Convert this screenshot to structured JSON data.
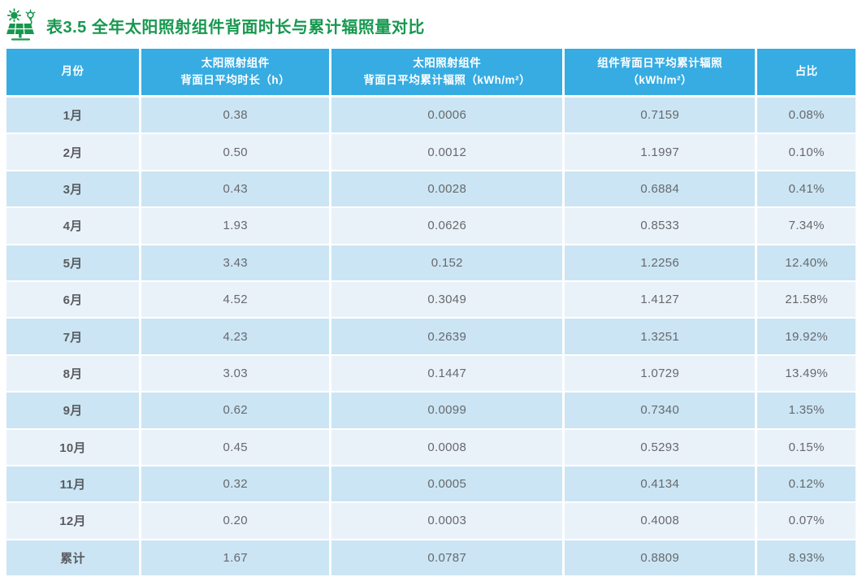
{
  "header": {
    "title": "表3.5 全年太阳照射组件背面时长与累计辐照量对比",
    "icon": "solar-panel-sun-bulb-icon"
  },
  "colors": {
    "title_green": "#17984F",
    "header_bg": "#36ACE2",
    "row_dark": "#CBE5F4",
    "row_light": "#EAF2F9",
    "header_text": "#FFFFFF",
    "cell_text": "#66696D"
  },
  "table": {
    "columns": [
      {
        "line1": "月份",
        "line2": ""
      },
      {
        "line1": "太阳照射组件",
        "line2": "背面日平均时长（h）"
      },
      {
        "line1": "太阳照射组件",
        "line2": "背面日平均累计辐照（kWh/m²）"
      },
      {
        "line1": "组件背面日平均累计辐照",
        "line2": "（kWh/m²）"
      },
      {
        "line1": "占比",
        "line2": ""
      }
    ],
    "rows": [
      [
        "1月",
        "0.38",
        "0.0006",
        "0.7159",
        "0.08%"
      ],
      [
        "2月",
        "0.50",
        "0.0012",
        "1.1997",
        "0.10%"
      ],
      [
        "3月",
        "0.43",
        "0.0028",
        "0.6884",
        "0.41%"
      ],
      [
        "4月",
        "1.93",
        "0.0626",
        "0.8533",
        "7.34%"
      ],
      [
        "5月",
        "3.43",
        "0.152",
        "1.2256",
        "12.40%"
      ],
      [
        "6月",
        "4.52",
        "0.3049",
        "1.4127",
        "21.58%"
      ],
      [
        "7月",
        "4.23",
        "0.2639",
        "1.3251",
        "19.92%"
      ],
      [
        "8月",
        "3.03",
        "0.1447",
        "1.0729",
        "13.49%"
      ],
      [
        "9月",
        "0.62",
        "0.0099",
        "0.7340",
        "1.35%"
      ],
      [
        "10月",
        "0.45",
        "0.0008",
        "0.5293",
        "0.15%"
      ],
      [
        "11月",
        "0.32",
        "0.0005",
        "0.4134",
        "0.12%"
      ],
      [
        "12月",
        "0.20",
        "0.0003",
        "0.4008",
        "0.07%"
      ],
      [
        "累计",
        "1.67",
        "0.0787",
        "0.8809",
        "8.93%"
      ]
    ]
  }
}
